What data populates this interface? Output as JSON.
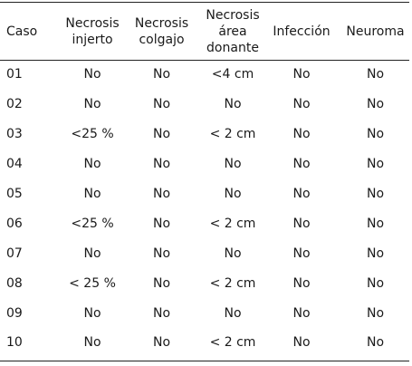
{
  "table": {
    "headers": {
      "caso": [
        "Caso"
      ],
      "necrosis_injerto": [
        "Necrosis",
        "injerto"
      ],
      "necrosis_colgajo": [
        "Necrosis",
        "colgajo"
      ],
      "necrosis_area_donante": [
        "Necrosis",
        "área",
        "donante"
      ],
      "infeccion": [
        "Infección"
      ],
      "neuroma": [
        "Neuroma"
      ]
    },
    "rows": [
      [
        "01",
        "No",
        "No",
        "<4 cm",
        "No",
        "No"
      ],
      [
        "02",
        "No",
        "No",
        "No",
        "No",
        "No"
      ],
      [
        "03",
        "<25 %",
        "No",
        "< 2 cm",
        "No",
        "No"
      ],
      [
        "04",
        "No",
        "No",
        "No",
        "No",
        "No"
      ],
      [
        "05",
        "No",
        "No",
        "No",
        "No",
        "No"
      ],
      [
        "06",
        "<25 %",
        "No",
        "< 2 cm",
        "No",
        "No"
      ],
      [
        "07",
        "No",
        "No",
        "No",
        "No",
        "No"
      ],
      [
        "08",
        "< 25 %",
        "No",
        "< 2 cm",
        "No",
        "No"
      ],
      [
        "09",
        "No",
        "No",
        "No",
        "No",
        "No"
      ],
      [
        "10",
        "No",
        "No",
        "< 2 cm",
        "No",
        "No"
      ]
    ]
  }
}
